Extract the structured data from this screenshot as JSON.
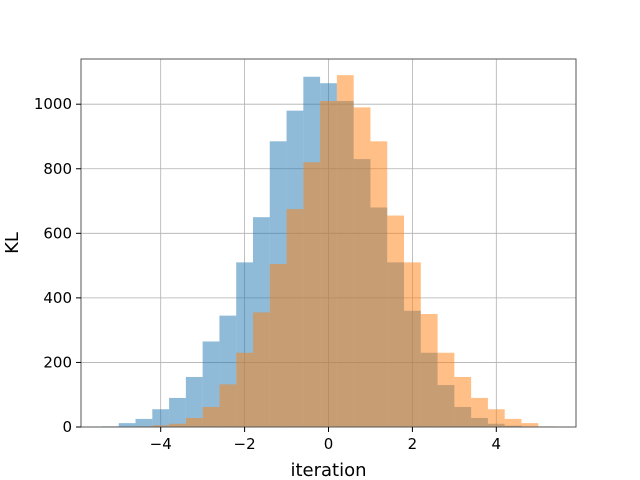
{
  "chart_data": {
    "type": "bar",
    "subtype": "overlaid-histogram",
    "title": "",
    "xlabel": "iteration",
    "ylabel": "KL",
    "xlim": [
      -5.9,
      5.9
    ],
    "ylim": [
      0,
      1140
    ],
    "xticks": [
      -4,
      -2,
      0,
      2,
      4
    ],
    "xtick_labels": [
      "−4",
      "−2",
      "0",
      "2",
      "4"
    ],
    "yticks": [
      0,
      200,
      400,
      600,
      800,
      1000
    ],
    "ytick_labels": [
      "0",
      "200",
      "400",
      "600",
      "800",
      "1000"
    ],
    "grid": true,
    "bins_edges": [
      -5.4,
      -5.0,
      -4.6,
      -4.2,
      -3.8,
      -3.4,
      -3.0,
      -2.6,
      -2.2,
      -1.8,
      -1.4,
      -1.0,
      -0.6,
      -0.2,
      0.2,
      0.6,
      1.0,
      1.4,
      1.8,
      2.2,
      2.6,
      3.0,
      3.4,
      3.8,
      4.2,
      4.6,
      5.0,
      5.4
    ],
    "series": [
      {
        "color": "#1f77b4",
        "alpha": 0.5,
        "values": [
          2,
          12,
          25,
          55,
          90,
          155,
          265,
          345,
          510,
          650,
          885,
          980,
          1085,
          1065,
          1010,
          830,
          680,
          510,
          360,
          230,
          130,
          62,
          28,
          10,
          4,
          1,
          0
        ]
      },
      {
        "color": "#ff7f0e",
        "alpha": 0.5,
        "values": [
          0,
          0,
          2,
          5,
          10,
          28,
          62,
          132,
          230,
          355,
          505,
          675,
          820,
          1010,
          1090,
          990,
          885,
          655,
          510,
          350,
          230,
          155,
          90,
          55,
          25,
          12,
          2
        ]
      }
    ]
  }
}
